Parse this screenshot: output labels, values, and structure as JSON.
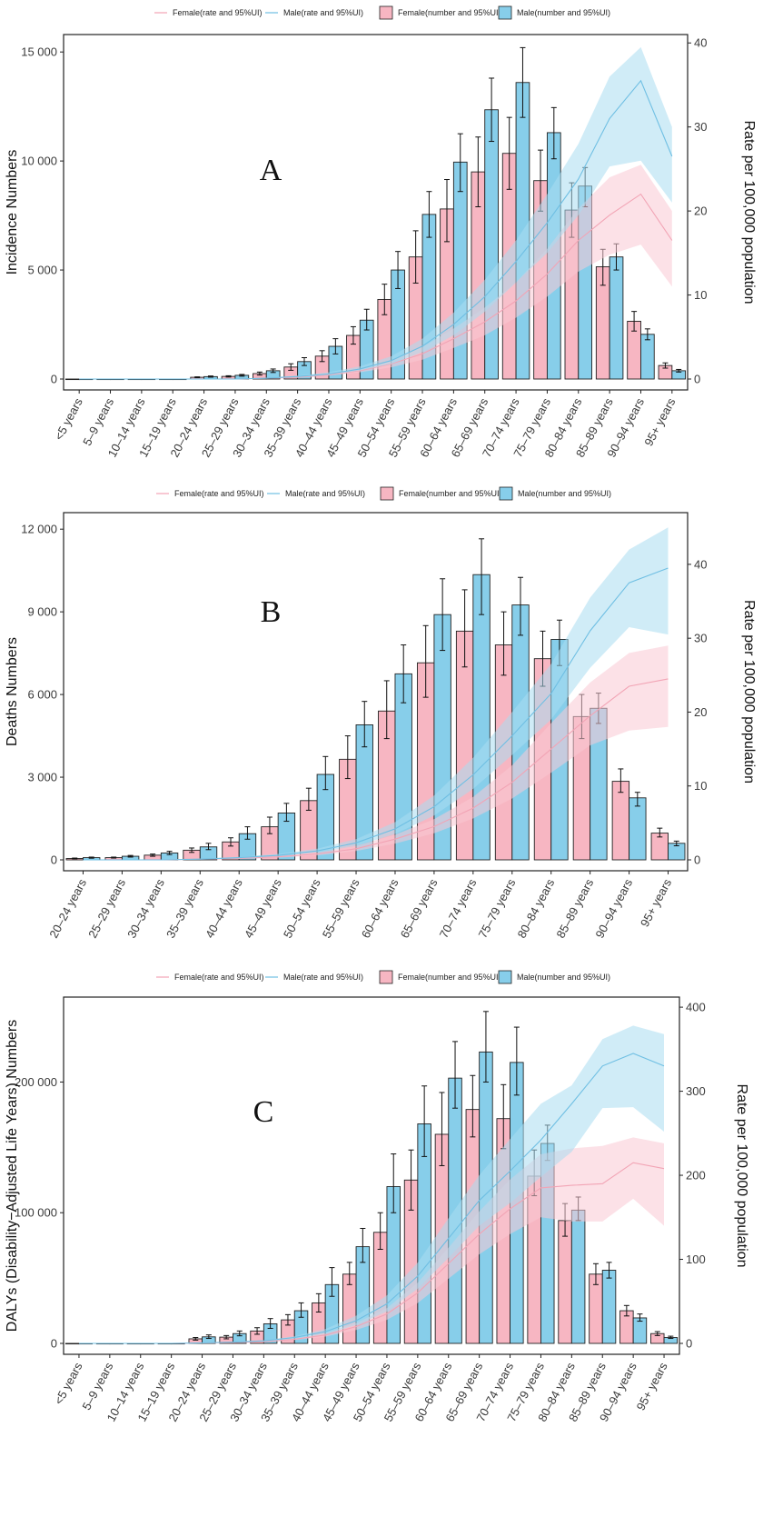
{
  "legend": {
    "female_rate": "Female(rate and 95%UI)",
    "male_rate": "Male(rate and 95%UI)",
    "female_number": "Female(number and 95%UI)",
    "male_number": "Male(number and 95%UI)"
  },
  "colors": {
    "female_bar": "#f7b6c2",
    "male_bar": "#87ceea",
    "female_band": "#f9c9d3",
    "male_band": "#a9dcf0",
    "female_line": "#f2a4b5",
    "male_line": "#6fbfe3"
  },
  "chart_data": [
    {
      "type": "bar",
      "panel": "A",
      "categories": [
        "<5 years",
        "5–9 years",
        "10–14 years",
        "15–19 years",
        "20–24 years",
        "25–29 years",
        "30–34 years",
        "35–39 years",
        "40–44 years",
        "45–49 years",
        "50–54 years",
        "55–59 years",
        "60–64 years",
        "65–69 years",
        "70–74 years",
        "75–79 years",
        "80–84 years",
        "85–89 years",
        "90–94 years",
        "95+ years"
      ],
      "ylabel": "Incidence Numbers",
      "y2label": "Rate per 100,000 population",
      "ylim": [
        0,
        15800
      ],
      "y2lim": [
        0,
        41
      ],
      "yticks": [
        0,
        5000,
        10000,
        15000
      ],
      "ytick_labels": [
        "0",
        "5 000",
        "10 000",
        "15 000"
      ],
      "y2ticks": [
        0,
        10,
        20,
        30,
        40
      ],
      "series": [
        {
          "name": "Female(number and 95%UI)",
          "values": [
            0,
            0,
            0,
            0,
            80,
            120,
            250,
            550,
            1050,
            2000,
            3650,
            5600,
            7800,
            9500,
            10350,
            9100,
            7750,
            5150,
            2650,
            620
          ],
          "lower": [
            0,
            0,
            0,
            0,
            60,
            90,
            180,
            400,
            800,
            1600,
            2950,
            4400,
            6300,
            7900,
            8700,
            7700,
            6500,
            4300,
            2200,
            500
          ],
          "upper": [
            0,
            0,
            0,
            0,
            100,
            150,
            320,
            700,
            1300,
            2400,
            4350,
            6800,
            9150,
            11100,
            12000,
            10500,
            9000,
            5950,
            3100,
            740
          ]
        },
        {
          "name": "Male(number and 95%UI)",
          "values": [
            0,
            0,
            0,
            0,
            110,
            170,
            380,
            800,
            1500,
            2700,
            5000,
            7550,
            9950,
            12350,
            13600,
            11300,
            8850,
            5600,
            2050,
            380
          ],
          "lower": [
            0,
            0,
            0,
            0,
            85,
            130,
            300,
            620,
            1150,
            2250,
            4150,
            6500,
            8600,
            10900,
            12000,
            10100,
            7900,
            5000,
            1800,
            320
          ],
          "upper": [
            0,
            0,
            0,
            0,
            140,
            210,
            460,
            980,
            1850,
            3200,
            5850,
            8600,
            11250,
            13800,
            15200,
            12450,
            9700,
            6200,
            2300,
            440
          ]
        },
        {
          "name": "Female(rate and 95%UI)",
          "values": [
            0,
            0,
            0,
            0,
            0,
            0,
            0.1,
            0.2,
            0.5,
            1.0,
            1.8,
            3.0,
            4.8,
            6.8,
            9.3,
            12.5,
            16.5,
            19.5,
            22.0,
            16.5
          ],
          "lower": [
            0,
            0,
            0,
            0,
            0,
            0,
            0.1,
            0.15,
            0.4,
            0.8,
            1.4,
            2.3,
            3.7,
            5.2,
            7.3,
            9.8,
            12.8,
            14.8,
            16.0,
            11.0
          ],
          "upper": [
            0,
            0,
            0,
            0,
            0,
            0,
            0.15,
            0.3,
            0.6,
            1.2,
            2.2,
            3.8,
            6.0,
            8.5,
            11.5,
            15.5,
            20.3,
            24.0,
            25.5,
            20.0
          ]
        },
        {
          "name": "Male(rate and 95%UI)",
          "values": [
            0,
            0,
            0,
            0,
            0,
            0,
            0.1,
            0.3,
            0.6,
            1.2,
            2.2,
            3.9,
            6.5,
            9.8,
            14.0,
            18.6,
            23.8,
            31.0,
            35.5,
            26.5
          ],
          "lower": [
            0,
            0,
            0,
            0,
            0,
            0,
            0.1,
            0.2,
            0.5,
            1.0,
            1.8,
            3.2,
            5.2,
            8.0,
            11.5,
            15.0,
            19.5,
            25.3,
            26.0,
            21.0
          ],
          "upper": [
            0,
            0,
            0,
            0,
            0,
            0,
            0.15,
            0.4,
            0.8,
            1.5,
            2.7,
            4.8,
            7.9,
            11.8,
            16.5,
            22.0,
            28.0,
            36.0,
            39.5,
            30.0
          ]
        }
      ]
    },
    {
      "type": "bar",
      "panel": "B",
      "categories": [
        "20–24 years",
        "25–29 years",
        "30–34 years",
        "35–39 years",
        "40–44 years",
        "45–49 years",
        "50–54 years",
        "55–59 years",
        "60–64 years",
        "65–69 years",
        "70–74 years",
        "75–79 years",
        "80–84 years",
        "85–89 years",
        "90–94 years",
        "95+ years"
      ],
      "ylabel": "Deaths Numbers",
      "y2label": "Rate per 100,000 population",
      "ylim": [
        0,
        12600
      ],
      "y2lim": [
        0,
        47
      ],
      "yticks": [
        0,
        3000,
        6000,
        9000,
        12000
      ],
      "ytick_labels": [
        "0",
        "3 000",
        "6 000",
        "9 000",
        "12 000"
      ],
      "y2ticks": [
        0,
        10,
        20,
        30,
        40
      ],
      "series": [
        {
          "name": "Female(number and 95%UI)",
          "values": [
            50,
            80,
            170,
            350,
            650,
            1200,
            2150,
            3650,
            5400,
            7150,
            8300,
            7800,
            7300,
            5200,
            2850,
            970
          ],
          "lower": [
            40,
            65,
            130,
            270,
            500,
            950,
            1800,
            2950,
            4400,
            5900,
            7000,
            6700,
            6300,
            4400,
            2450,
            830
          ],
          "upper": [
            65,
            100,
            210,
            430,
            800,
            1550,
            2600,
            4500,
            6500,
            8500,
            9800,
            9000,
            8300,
            6000,
            3300,
            1150
          ]
        },
        {
          "name": "Male(number and 95%UI)",
          "values": [
            80,
            130,
            250,
            470,
            950,
            1700,
            3100,
            4900,
            6750,
            8900,
            10350,
            9250,
            8000,
            5500,
            2250,
            600
          ],
          "lower": [
            60,
            100,
            190,
            370,
            750,
            1400,
            2550,
            4100,
            5700,
            7600,
            8900,
            8150,
            7050,
            4950,
            1950,
            510
          ],
          "upper": [
            100,
            160,
            310,
            600,
            1200,
            2050,
            3750,
            5750,
            7800,
            10200,
            11650,
            10250,
            8700,
            6050,
            2450,
            680
          ]
        },
        {
          "name": "Female(rate and 95%UI)",
          "values": [
            0,
            0,
            0,
            0.1,
            0.2,
            0.4,
            0.8,
            1.5,
            2.8,
            4.5,
            7.0,
            10.5,
            15.0,
            19.5,
            23.5,
            24.5
          ],
          "lower": [
            0,
            0,
            0,
            0.1,
            0.15,
            0.3,
            0.6,
            1.2,
            2.2,
            3.6,
            5.6,
            8.3,
            11.8,
            15.5,
            17.5,
            18.0
          ],
          "upper": [
            0,
            0,
            0,
            0.15,
            0.3,
            0.5,
            1.0,
            1.9,
            3.4,
            5.5,
            8.5,
            12.8,
            18.5,
            24.0,
            28.0,
            29.0
          ]
        },
        {
          "name": "Male(rate and 95%UI)",
          "values": [
            0,
            0,
            0,
            0.1,
            0.3,
            0.6,
            1.2,
            2.3,
            4.2,
            7.2,
            11.5,
            16.8,
            22.5,
            31.0,
            37.5,
            39.5
          ],
          "lower": [
            0,
            0,
            0,
            0.1,
            0.2,
            0.5,
            1.0,
            1.9,
            3.5,
            6.0,
            9.6,
            14.2,
            19.0,
            26.0,
            31.5,
            30.5
          ],
          "upper": [
            0,
            0,
            0,
            0.15,
            0.4,
            0.8,
            1.5,
            2.8,
            5.1,
            8.7,
            13.8,
            20.0,
            26.5,
            35.5,
            42.0,
            45.0
          ]
        }
      ]
    },
    {
      "type": "bar",
      "panel": "C",
      "categories": [
        "<5 years",
        "5–9 years",
        "10–14 years",
        "15–19 years",
        "20–24 years",
        "25–29 years",
        "30–34 years",
        "35–39 years",
        "40–44 years",
        "45–49 years",
        "50–54 years",
        "55–59 years",
        "60–64 years",
        "65–69 years",
        "70–74 years",
        "75–79 years",
        "80–84 years",
        "85–89 years",
        "90–94 years",
        "95+ years"
      ],
      "ylabel": "DALYs (Disability−Adjusted Life Years) Numbers",
      "y2label": "Rate per 100,000 population",
      "ylim": [
        0,
        265000
      ],
      "y2lim": [
        0,
        412
      ],
      "yticks": [
        0,
        100000,
        200000
      ],
      "ytick_labels": [
        "0",
        "100 000",
        "200 000"
      ],
      "y2ticks": [
        0,
        100,
        200,
        300,
        400
      ],
      "series": [
        {
          "name": "Female(number and 95%UI)",
          "values": [
            0,
            0,
            0,
            0,
            3500,
            4800,
            9500,
            18000,
            31000,
            53000,
            85000,
            125000,
            160000,
            179000,
            172000,
            128000,
            94000,
            53000,
            25000,
            7500
          ],
          "lower": [
            0,
            0,
            0,
            0,
            2500,
            3500,
            7000,
            14000,
            24000,
            45000,
            72000,
            102000,
            136000,
            158000,
            149000,
            113000,
            82000,
            45000,
            21000,
            6000
          ],
          "upper": [
            0,
            0,
            0,
            0,
            4500,
            6000,
            12000,
            22000,
            38000,
            62000,
            100000,
            148000,
            192000,
            205000,
            198000,
            148000,
            107000,
            61000,
            29000,
            9000
          ]
        },
        {
          "name": "Male(number and 95%UI)",
          "values": [
            0,
            0,
            0,
            0,
            5000,
            7500,
            15000,
            25000,
            45000,
            74000,
            120000,
            168000,
            203000,
            223000,
            215000,
            153000,
            102000,
            56000,
            19500,
            4500
          ],
          "lower": [
            0,
            0,
            0,
            0,
            3800,
            5800,
            11500,
            20000,
            36000,
            62000,
            100000,
            143000,
            180000,
            200000,
            190000,
            140000,
            94000,
            50000,
            17000,
            3800
          ],
          "upper": [
            0,
            0,
            0,
            0,
            6500,
            9500,
            19000,
            31000,
            58000,
            88000,
            145000,
            197000,
            231000,
            254000,
            242000,
            167000,
            112000,
            62000,
            22500,
            5500
          ]
        },
        {
          "name": "Female(rate and 95%UI)",
          "values": [
            0,
            0,
            0,
            0,
            0.5,
            1,
            2,
            5,
            10,
            20,
            35,
            60,
            95,
            130,
            160,
            185,
            188,
            190,
            215,
            208
          ],
          "lower": [
            0,
            0,
            0,
            0,
            0.3,
            0.7,
            1.5,
            4,
            8,
            16,
            28,
            48,
            77,
            106,
            130,
            150,
            145,
            145,
            172,
            140
          ],
          "upper": [
            0,
            0,
            0,
            0,
            0.7,
            1.3,
            2.5,
            6,
            12,
            24,
            42,
            72,
            114,
            157,
            195,
            225,
            232,
            235,
            245,
            238
          ]
        },
        {
          "name": "Male(rate and 95%UI)",
          "values": [
            0,
            0,
            0,
            0,
            0.7,
            1.5,
            3,
            7,
            14,
            27,
            47,
            80,
            125,
            170,
            205,
            242,
            285,
            330,
            345,
            330
          ],
          "lower": [
            0,
            0,
            0,
            0,
            0.5,
            1.1,
            2.3,
            5.5,
            11,
            22,
            38,
            65,
            102,
            140,
            167,
            198,
            228,
            280,
            281,
            252
          ],
          "upper": [
            0,
            0,
            0,
            0,
            0.9,
            1.9,
            3.7,
            8.5,
            17,
            33,
            57,
            96,
            149,
            200,
            243,
            285,
            307,
            362,
            378,
            368
          ]
        }
      ]
    }
  ]
}
